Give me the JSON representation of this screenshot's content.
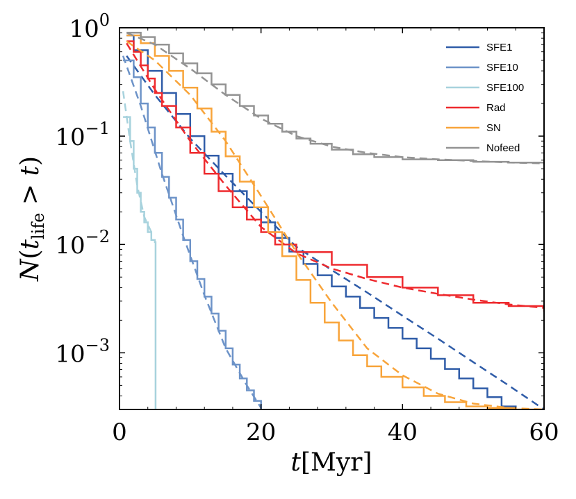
{
  "chart_data": {
    "type": "line",
    "xlabel": "t[Myr]",
    "ylabel": "N(t_life > t)",
    "xlim": [
      0,
      60
    ],
    "ylim": [
      0.0003,
      1.0
    ],
    "yscale": "log",
    "xticks": [
      0,
      20,
      40,
      60
    ],
    "xtick_labels": [
      "0",
      "20",
      "40",
      "60"
    ],
    "yticks": [
      0.001,
      0.01,
      0.1,
      1.0
    ],
    "ytick_labels": [
      {
        "base": "10",
        "exp": "−3"
      },
      {
        "base": "10",
        "exp": "−2"
      },
      {
        "base": "10",
        "exp": "−1"
      },
      {
        "base": "10",
        "exp": "0"
      }
    ],
    "legend_position": "top-right",
    "grid": false,
    "series": [
      {
        "name": "SFE1",
        "color": "#2f5ca8",
        "step": {
          "x": [
            1,
            2,
            4,
            6,
            8,
            10,
            12,
            14,
            16,
            18,
            20,
            22,
            24,
            26,
            28,
            30,
            32,
            34,
            36,
            38,
            40,
            42,
            44,
            46,
            48,
            50,
            52,
            54,
            56,
            58,
            60
          ],
          "y": [
            0.85,
            0.62,
            0.4,
            0.25,
            0.16,
            0.1,
            0.066,
            0.045,
            0.031,
            0.022,
            0.016,
            0.0115,
            0.0086,
            0.0066,
            0.0052,
            0.0041,
            0.0033,
            0.0026,
            0.0021,
            0.0017,
            0.00135,
            0.0011,
            0.00088,
            0.00071,
            0.00058,
            0.00047,
            0.00039,
            0.00032,
            0.00028,
            0.00026,
            0.00025
          ]
        },
        "fit": {
          "x": [
            1,
            5,
            10,
            15,
            20,
            25,
            30,
            35,
            40,
            45,
            50,
            55,
            60
          ],
          "y": [
            0.55,
            0.24,
            0.095,
            0.043,
            0.02,
            0.0095,
            0.0058,
            0.0036,
            0.0022,
            0.00135,
            0.00082,
            0.0005,
            0.0003
          ]
        }
      },
      {
        "name": "SFE10",
        "color": "#6d93c8",
        "step": {
          "x": [
            0.5,
            2,
            3,
            4,
            5,
            6,
            7,
            8,
            9,
            10,
            11,
            12,
            13,
            14,
            15,
            16,
            17,
            18,
            19,
            20
          ],
          "y": [
            0.5,
            0.35,
            0.2,
            0.12,
            0.07,
            0.042,
            0.027,
            0.017,
            0.011,
            0.007,
            0.0048,
            0.0033,
            0.0023,
            0.0016,
            0.0011,
            0.00078,
            0.00058,
            0.00045,
            0.00036,
            0.0003
          ]
        },
        "fit": {
          "x": [
            0.5,
            3,
            6,
            9,
            12,
            15,
            18,
            20
          ],
          "y": [
            0.55,
            0.19,
            0.045,
            0.012,
            0.0034,
            0.0011,
            0.0005,
            0.00031
          ]
        }
      },
      {
        "name": "SFE100",
        "color": "#a7d2dd",
        "step": {
          "x": [
            0.5,
            1.5,
            2,
            2.5,
            3,
            3.5,
            4,
            4.5,
            5,
            5.1
          ],
          "y": [
            0.15,
            0.09,
            0.05,
            0.03,
            0.02,
            0.016,
            0.013,
            0.011,
            0.0105,
            0.0003
          ]
        },
        "fit": {
          "x": [
            0.5,
            1.5,
            2.5,
            3.5,
            4.5
          ],
          "y": [
            0.26,
            0.09,
            0.035,
            0.018,
            0.013
          ]
        }
      },
      {
        "name": "Rad",
        "color": "#ee2a2e",
        "step": {
          "x": [
            1,
            2,
            3,
            4,
            5,
            6,
            8,
            10,
            12,
            14,
            16,
            18,
            20,
            22,
            25,
            30,
            35,
            40,
            45,
            50,
            55,
            60
          ],
          "y": [
            0.75,
            0.6,
            0.45,
            0.34,
            0.25,
            0.19,
            0.12,
            0.07,
            0.045,
            0.031,
            0.022,
            0.017,
            0.013,
            0.01,
            0.0085,
            0.0065,
            0.005,
            0.004,
            0.0034,
            0.0029,
            0.0027,
            0.0024
          ]
        },
        "fit": {
          "x": [
            1,
            5,
            10,
            15,
            20,
            25,
            30,
            35,
            40,
            45,
            50,
            55,
            60
          ],
          "y": [
            0.72,
            0.27,
            0.09,
            0.035,
            0.0145,
            0.0083,
            0.006,
            0.0048,
            0.004,
            0.0035,
            0.0031,
            0.0028,
            0.0026
          ]
        }
      },
      {
        "name": "SN",
        "color": "#f8a43a",
        "step": {
          "x": [
            1,
            3,
            5,
            7,
            9,
            11,
            13,
            15,
            17,
            19,
            21,
            23,
            25,
            27,
            29,
            31,
            33,
            35,
            37,
            40,
            43,
            46,
            49,
            52,
            55,
            58,
            60
          ],
          "y": [
            0.85,
            0.72,
            0.55,
            0.4,
            0.28,
            0.18,
            0.11,
            0.065,
            0.038,
            0.022,
            0.013,
            0.0078,
            0.0047,
            0.0029,
            0.0019,
            0.0013,
            0.00095,
            0.00075,
            0.0006,
            0.00048,
            0.0004,
            0.00035,
            0.00032,
            0.00031,
            0.0003,
            0.0003,
            0.0003
          ]
        },
        "fit": {
          "x": [
            1,
            5,
            10,
            15,
            20,
            25,
            30,
            35,
            40,
            45,
            50,
            55,
            60
          ],
          "y": [
            0.75,
            0.5,
            0.24,
            0.09,
            0.028,
            0.0085,
            0.0029,
            0.0011,
            0.00062,
            0.00042,
            0.00034,
            0.00031,
            0.0003
          ]
        }
      },
      {
        "name": "Nofeed",
        "color": "#939393",
        "step": {
          "x": [
            1,
            3,
            5,
            7,
            9,
            11,
            13,
            15,
            17,
            19,
            21,
            23,
            25,
            27,
            30,
            33,
            36,
            40,
            45,
            50,
            55,
            60
          ],
          "y": [
            0.9,
            0.82,
            0.7,
            0.58,
            0.47,
            0.38,
            0.3,
            0.24,
            0.19,
            0.155,
            0.13,
            0.11,
            0.095,
            0.085,
            0.075,
            0.068,
            0.064,
            0.061,
            0.06,
            0.058,
            0.057,
            0.055
          ]
        },
        "fit": {
          "x": [
            1,
            5,
            10,
            15,
            20,
            25,
            30,
            35,
            40,
            45,
            50,
            55,
            60
          ],
          "y": [
            0.9,
            0.7,
            0.42,
            0.24,
            0.145,
            0.1,
            0.08,
            0.07,
            0.064,
            0.061,
            0.059,
            0.057,
            0.056
          ]
        }
      }
    ]
  }
}
